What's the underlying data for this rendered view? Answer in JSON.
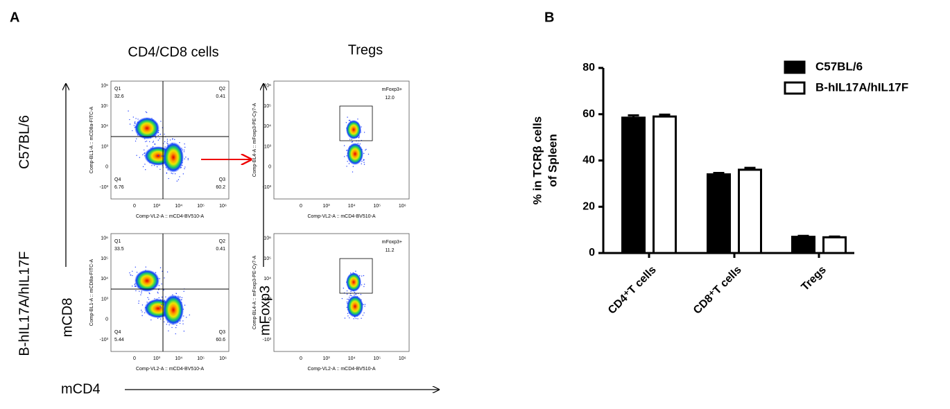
{
  "panel_a": {
    "label": "A",
    "col_titles": [
      "CD4/CD8 cells",
      "Tregs"
    ],
    "row_labels": [
      "C57BL/6",
      "B-hIL17A/hIL17F"
    ],
    "y_axis_labels": [
      "mCD8",
      "mFoxp3"
    ],
    "x_axis_label": "mCD4",
    "cd4_axis_title": "Comp-VL2-A :: mCD4-BV510-A",
    "cd8_axis_title": "Comp-BL1-A :: mCD8a-FITC-A",
    "foxp3_axis_title": "Comp-BL4-A :: mFoxp3-PE-Cy7-A",
    "x_tick_labels": [
      "0",
      "10³",
      "10⁴",
      "10⁵",
      "10⁶"
    ],
    "y_tick_labels": [
      "10⁶",
      "10⁵",
      "10⁴",
      "10³",
      "0",
      "-10³"
    ],
    "quadrant_plots": [
      {
        "gates": [
          {
            "name": "Q1",
            "value": "32.6"
          },
          {
            "name": "Q2",
            "value": "0.41"
          },
          {
            "name": "Q4",
            "value": "6.76"
          },
          {
            "name": "Q3",
            "value": "60.2"
          }
        ]
      },
      {
        "gates": [
          {
            "name": "Q1",
            "value": "33.5"
          },
          {
            "name": "Q2",
            "value": "0.41"
          },
          {
            "name": "Q4",
            "value": "5.44"
          },
          {
            "name": "Q3",
            "value": "60.6"
          }
        ]
      }
    ],
    "treg_plots": [
      {
        "gate": "mFoxp3+",
        "value": "12.0"
      },
      {
        "gate": "mFoxp3+",
        "value": "11.2"
      }
    ]
  },
  "panel_b_label": "B",
  "chart_data": {
    "type": "bar",
    "ylabel_lines": [
      "% in TCRβ cells",
      "of Spleen"
    ],
    "categories": [
      "CD4⁺T cells",
      "CD8⁺T cells",
      "Tregs"
    ],
    "series": [
      {
        "name": "C57BL/6",
        "color": "#000000",
        "values": [
          58.5,
          34,
          7
        ],
        "errors": [
          1,
          0.6,
          0.4
        ]
      },
      {
        "name": "B-hIL17A/hIL17F",
        "color": "#ffffff",
        "values": [
          59,
          36,
          6.8
        ],
        "errors": [
          0.8,
          0.8,
          0.3
        ]
      }
    ],
    "ylim": [
      0,
      80
    ],
    "yticks": [
      0,
      20,
      40,
      60,
      80
    ]
  }
}
